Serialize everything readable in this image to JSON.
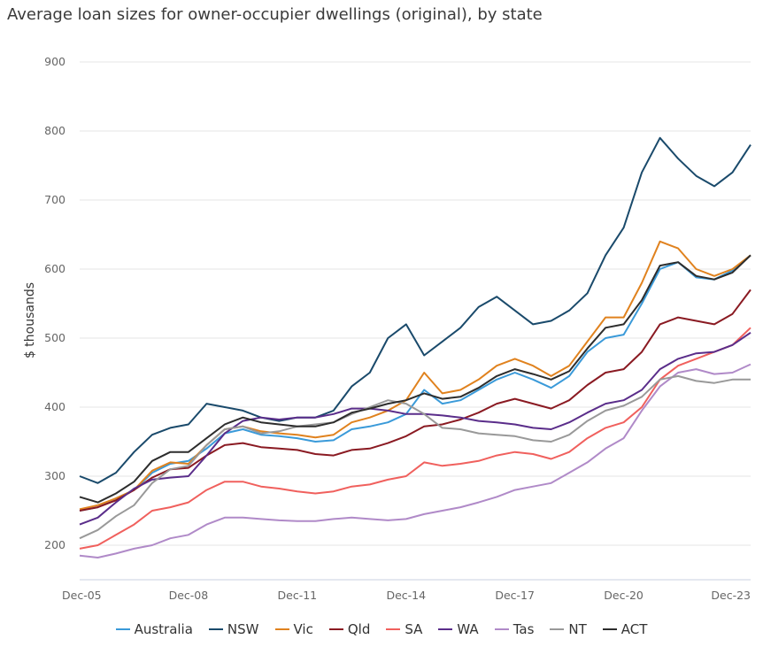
{
  "chart_data": {
    "type": "line",
    "title": "Average loan sizes for owner-occupier dwellings (original), by state",
    "ylabel": "$ thousands",
    "xlabel": "",
    "ylim": [
      150,
      900
    ],
    "yticks": [
      "200",
      "300",
      "400",
      "500",
      "600",
      "700",
      "800",
      "900"
    ],
    "xticks": [
      "Dec-05",
      "Dec-08",
      "Dec-11",
      "Dec-14",
      "Dec-17",
      "Dec-20",
      "Dec-23"
    ],
    "x_start": "Dec-05",
    "x_end": "Jun-24",
    "grid": "horizontal",
    "legend_position": "bottom",
    "x": [
      "Dec-05",
      "Jun-06",
      "Dec-06",
      "Jun-07",
      "Dec-07",
      "Jun-08",
      "Dec-08",
      "Jun-09",
      "Dec-09",
      "Jun-10",
      "Dec-10",
      "Jun-11",
      "Dec-11",
      "Jun-12",
      "Dec-12",
      "Jun-13",
      "Dec-13",
      "Jun-14",
      "Dec-14",
      "Jun-15",
      "Dec-15",
      "Jun-16",
      "Dec-16",
      "Jun-17",
      "Dec-17",
      "Jun-18",
      "Dec-18",
      "Jun-19",
      "Dec-19",
      "Jun-20",
      "Dec-20",
      "Jun-21",
      "Dec-21",
      "Jun-22",
      "Dec-22",
      "Jun-23",
      "Dec-23",
      "Jun-24"
    ],
    "series": [
      {
        "name": "Australia",
        "color": "#3a9ad9",
        "values": [
          250,
          255,
          268,
          280,
          305,
          318,
          322,
          340,
          362,
          368,
          360,
          358,
          355,
          350,
          352,
          368,
          372,
          378,
          390,
          425,
          405,
          410,
          425,
          440,
          450,
          440,
          428,
          445,
          480,
          500,
          505,
          550,
          600,
          610,
          588,
          585,
          598,
          620
        ]
      },
      {
        "name": "NSW",
        "color": "#1a4a6b",
        "values": [
          300,
          290,
          305,
          335,
          360,
          370,
          375,
          405,
          400,
          395,
          385,
          380,
          385,
          385,
          395,
          430,
          450,
          500,
          520,
          475,
          495,
          515,
          545,
          560,
          540,
          520,
          525,
          540,
          565,
          620,
          660,
          740,
          790,
          760,
          735,
          720,
          740,
          780
        ]
      },
      {
        "name": "Vic",
        "color": "#e0821e",
        "values": [
          252,
          258,
          268,
          280,
          308,
          320,
          318,
          345,
          368,
          372,
          365,
          362,
          360,
          356,
          360,
          378,
          385,
          395,
          410,
          450,
          420,
          425,
          440,
          460,
          470,
          460,
          445,
          460,
          495,
          530,
          530,
          580,
          640,
          630,
          600,
          590,
          600,
          620
        ]
      },
      {
        "name": "Qld",
        "color": "#8a1a22",
        "values": [
          250,
          255,
          265,
          280,
          298,
          310,
          312,
          330,
          345,
          348,
          342,
          340,
          338,
          332,
          330,
          338,
          340,
          348,
          358,
          372,
          375,
          382,
          392,
          405,
          412,
          405,
          398,
          410,
          432,
          450,
          455,
          480,
          520,
          530,
          525,
          520,
          535,
          570
        ]
      },
      {
        "name": "SA",
        "color": "#f0605d",
        "values": [
          195,
          200,
          215,
          230,
          250,
          255,
          262,
          280,
          292,
          292,
          285,
          282,
          278,
          275,
          278,
          285,
          288,
          295,
          300,
          320,
          315,
          318,
          322,
          330,
          335,
          332,
          325,
          335,
          355,
          370,
          378,
          400,
          440,
          460,
          470,
          480,
          490,
          515
        ]
      },
      {
        "name": "WA",
        "color": "#5a2d8a",
        "values": [
          230,
          240,
          262,
          282,
          295,
          298,
          300,
          330,
          362,
          380,
          385,
          382,
          385,
          385,
          390,
          398,
          398,
          395,
          390,
          390,
          388,
          385,
          380,
          378,
          375,
          370,
          368,
          378,
          392,
          405,
          410,
          425,
          455,
          470,
          478,
          480,
          490,
          508
        ]
      },
      {
        "name": "Tas",
        "color": "#b08ac8",
        "values": [
          185,
          182,
          188,
          195,
          200,
          210,
          215,
          230,
          240,
          240,
          238,
          236,
          235,
          235,
          238,
          240,
          238,
          236,
          238,
          245,
          250,
          255,
          262,
          270,
          280,
          285,
          290,
          305,
          320,
          340,
          355,
          395,
          430,
          450,
          455,
          448,
          450,
          462
        ]
      },
      {
        "name": "NT",
        "color": "#999999",
        "values": [
          210,
          222,
          242,
          258,
          290,
          310,
          315,
          345,
          368,
          372,
          362,
          365,
          372,
          375,
          378,
          390,
          400,
          410,
          405,
          390,
          370,
          368,
          362,
          360,
          358,
          352,
          350,
          360,
          380,
          395,
          402,
          415,
          440,
          445,
          438,
          435,
          440,
          440
        ]
      },
      {
        "name": "ACT",
        "color": "#2d2d2d",
        "values": [
          270,
          262,
          275,
          292,
          322,
          335,
          335,
          355,
          375,
          385,
          378,
          375,
          372,
          372,
          378,
          392,
          398,
          405,
          410,
          420,
          412,
          415,
          428,
          445,
          455,
          448,
          440,
          452,
          485,
          515,
          520,
          555,
          605,
          610,
          590,
          585,
          595,
          620
        ]
      }
    ]
  }
}
